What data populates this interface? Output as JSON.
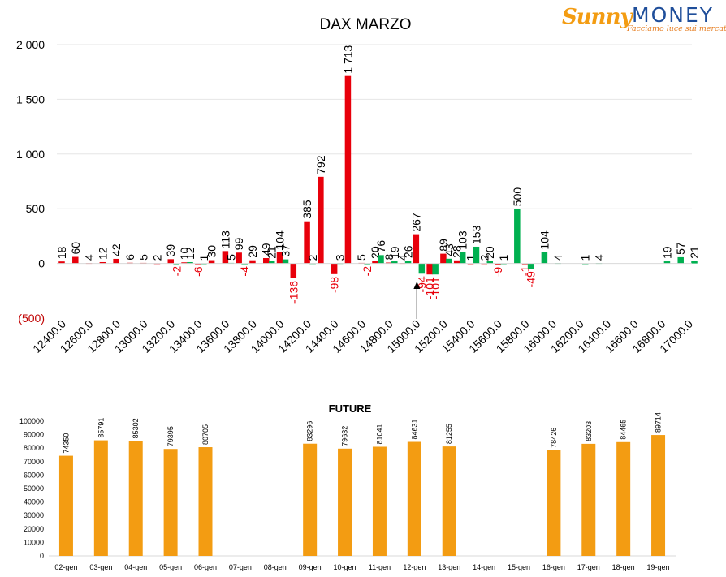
{
  "logo": {
    "brand_a": "Sunny",
    "brand_b": "MONEY",
    "tagline": "Facciamo luce sui mercati",
    "colors": {
      "sunny": "#f39c12",
      "money": "#1f4e9a"
    }
  },
  "chart_data": [
    {
      "type": "bar",
      "title": "DAX MARZO",
      "ylim": [
        -500,
        2000
      ],
      "y_ticks": [
        {
          "value": 2000,
          "label": "2 000"
        },
        {
          "value": 1500,
          "label": "1 500"
        },
        {
          "value": 1000,
          "label": "1 000"
        },
        {
          "value": 500,
          "label": "500"
        },
        {
          "value": 0,
          "label": "0"
        },
        {
          "value": -500,
          "label": "(500)"
        }
      ],
      "x_ticks": [
        "12400.0",
        "12600.0",
        "12800.0",
        "13000.0",
        "13200.0",
        "13400.0",
        "13600.0",
        "13800.0",
        "14000.0",
        "14200.0",
        "14400.0",
        "14600.0",
        "14800.0",
        "15000.0",
        "15200.0",
        "15400.0",
        "15600.0",
        "15800.0",
        "16000.0",
        "16200.0",
        "16400.0",
        "16600.0",
        "16800.0",
        "17000.0"
      ],
      "x_range": [
        12400,
        17000
      ],
      "grid": true,
      "colors": {
        "call": "#e8000b",
        "put": "#00b050",
        "negative_label": "#e8000b",
        "positive_label": "#000000"
      },
      "marker_strike": 15000,
      "call_series": [
        {
          "strike": 12400,
          "value": 18
        },
        {
          "strike": 12500,
          "value": 60
        },
        {
          "strike": 12600,
          "value": 4
        },
        {
          "strike": 12700,
          "value": 12
        },
        {
          "strike": 12800,
          "value": 42
        },
        {
          "strike": 12900,
          "value": 6
        },
        {
          "strike": 13000,
          "value": 5
        },
        {
          "strike": 13100,
          "value": 2
        },
        {
          "strike": 13200,
          "value": 39
        },
        {
          "strike": 13300,
          "value": 10
        },
        {
          "strike": 13400,
          "value": -6
        },
        {
          "strike": 13500,
          "value": 30
        },
        {
          "strike": 13600,
          "value": 113
        },
        {
          "strike": 13700,
          "value": 99
        },
        {
          "strike": 13800,
          "value": 29
        },
        {
          "strike": 13900,
          "value": 49
        },
        {
          "strike": 14000,
          "value": 104
        },
        {
          "strike": 14100,
          "value": -136
        },
        {
          "strike": 14200,
          "value": 385
        },
        {
          "strike": 14300,
          "value": 792
        },
        {
          "strike": 14400,
          "value": -98
        },
        {
          "strike": 14500,
          "value": 1713
        },
        {
          "strike": 14600,
          "value": 5
        },
        {
          "strike": 14700,
          "value": 20
        },
        {
          "strike": 14800,
          "value": 8
        },
        {
          "strike": 14900,
          "value": 4
        },
        {
          "strike": 15000,
          "value": 267
        },
        {
          "strike": 15100,
          "value": -101
        },
        {
          "strike": 15200,
          "value": 89
        },
        {
          "strike": 15300,
          "value": 28
        },
        {
          "strike": 15400,
          "value": 1
        },
        {
          "strike": 15500,
          "value": 2
        },
        {
          "strike": 15600,
          "value": -9
        },
        {
          "strike": 15800,
          "value": -1
        }
      ],
      "put_series": [
        {
          "strike": 13200,
          "value": -2
        },
        {
          "strike": 13300,
          "value": 12
        },
        {
          "strike": 13400,
          "value": 1
        },
        {
          "strike": 13600,
          "value": 5
        },
        {
          "strike": 13700,
          "value": -4
        },
        {
          "strike": 13900,
          "value": 21
        },
        {
          "strike": 14000,
          "value": 37
        },
        {
          "strike": 14200,
          "value": 2
        },
        {
          "strike": 14400,
          "value": 3
        },
        {
          "strike": 14600,
          "value": -2
        },
        {
          "strike": 14700,
          "value": 76
        },
        {
          "strike": 14800,
          "value": 19
        },
        {
          "strike": 14900,
          "value": 26
        },
        {
          "strike": 15000,
          "value": -94
        },
        {
          "strike": 15100,
          "value": -101
        },
        {
          "strike": 15200,
          "value": 43
        },
        {
          "strike": 15300,
          "value": 103
        },
        {
          "strike": 15400,
          "value": 153
        },
        {
          "strike": 15500,
          "value": 20
        },
        {
          "strike": 15600,
          "value": 1
        },
        {
          "strike": 15700,
          "value": 500
        },
        {
          "strike": 15800,
          "value": -49
        },
        {
          "strike": 15900,
          "value": 104
        },
        {
          "strike": 16000,
          "value": 4
        },
        {
          "strike": 16200,
          "value": 1
        },
        {
          "strike": 16300,
          "value": 4
        },
        {
          "strike": 16800,
          "value": 19
        },
        {
          "strike": 16900,
          "value": 57
        },
        {
          "strike": 17000,
          "value": 21
        }
      ]
    },
    {
      "type": "bar",
      "title": "FUTURE",
      "ylim": [
        0,
        100000
      ],
      "y_ticks": [
        0,
        10000,
        20000,
        30000,
        40000,
        50000,
        60000,
        70000,
        80000,
        90000,
        100000
      ],
      "categories": [
        "02-gen",
        "03-gen",
        "04-gen",
        "05-gen",
        "06-gen",
        "07-gen",
        "08-gen",
        "09-gen",
        "10-gen",
        "11-gen",
        "12-gen",
        "13-gen",
        "14-gen",
        "15-gen",
        "16-gen",
        "17-gen",
        "18-gen",
        "19-gen"
      ],
      "values": [
        74350,
        85791,
        85302,
        79395,
        80705,
        null,
        null,
        83296,
        79632,
        81041,
        84631,
        81255,
        null,
        null,
        78426,
        83203,
        84465,
        89714
      ],
      "color": "#f39c12",
      "grid": false
    }
  ]
}
